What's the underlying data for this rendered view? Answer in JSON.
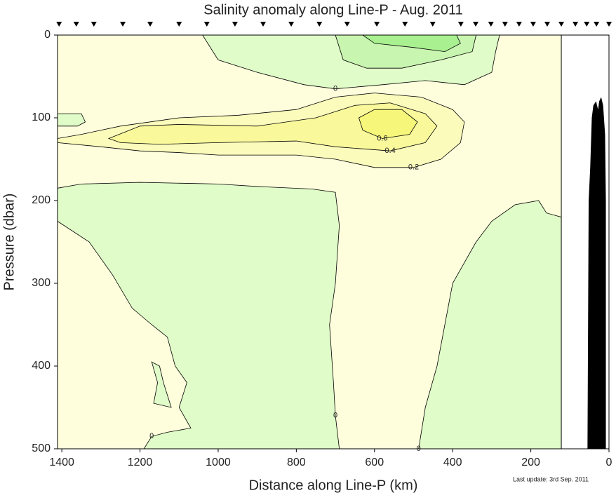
{
  "chart_data": {
    "type": "contour",
    "title": "Salinity anomaly along Line-P - Aug. 2011",
    "xlabel": "Distance along Line-P (km)",
    "ylabel": "Pressure (dbar)",
    "note": "Last update: 3rd Sep. 2011",
    "xlim": [
      1411,
      0
    ],
    "ylim": [
      500,
      0
    ],
    "xticks": [
      1400,
      1200,
      1000,
      800,
      600,
      400,
      200,
      0
    ],
    "yticks": [
      0,
      100,
      200,
      300,
      400,
      500
    ],
    "background": "#fefedc",
    "data_edge": 122,
    "stations": [
      1407,
      1363,
      1318,
      1244,
      1174,
      1100,
      1029,
      957,
      885,
      813,
      741,
      670,
      594,
      522,
      451,
      379,
      341,
      302,
      266,
      230,
      194,
      158,
      122,
      86,
      57,
      32,
      0
    ],
    "contours": [
      {
        "level": 0,
        "color": "#e0fcc8",
        "x": [
          1411,
          1350,
          1200,
          1000,
          900,
          760,
          700,
          690,
          700,
          715,
          705,
          700,
          690,
          1190,
          1411
        ],
        "y": [
          185,
          180,
          178,
          180,
          183,
          186,
          190,
          230,
          300,
          350,
          420,
          460,
          500,
          500,
          500
        ]
      },
      {
        "level": 0,
        "color": "#fefedc",
        "x": [
          1411,
          1330,
          1270,
          1220,
          1170,
          1130,
          1110,
          1080,
          1100,
          1070,
          1130,
          1170,
          1190,
          1411
        ],
        "y": [
          225,
          250,
          290,
          330,
          350,
          365,
          400,
          420,
          450,
          475,
          480,
          485,
          500,
          500
        ]
      },
      {
        "color": "#e0fcc8",
        "x": [
          1170,
          1150,
          1140,
          1120,
          1165,
          1155
        ],
        "y": [
          395,
          400,
          420,
          450,
          445,
          420
        ]
      },
      {
        "level": 0,
        "color": "#e0fcc8",
        "x": [
          487,
          470,
          440,
          420,
          400,
          340,
          300,
          240,
          180,
          160,
          122,
          122
        ],
        "y": [
          500,
          450,
          400,
          350,
          300,
          250,
          225,
          205,
          200,
          215,
          220,
          500
        ]
      },
      {
        "level": 0,
        "color": "#e0fcc8",
        "x": [
          1040,
          1000,
          900,
          780,
          700,
          580,
          470,
          370,
          300,
          290,
          280
        ],
        "y": [
          0,
          30,
          45,
          60,
          65,
          60,
          55,
          60,
          45,
          20,
          0
        ]
      },
      {
        "color": "#c8f5b0",
        "x": [
          700,
          680,
          620,
          530,
          430,
          350,
          340
        ],
        "y": [
          0,
          30,
          40,
          40,
          30,
          20,
          0
        ]
      },
      {
        "color": "#a8f090",
        "x": [
          630,
          600,
          500,
          420,
          380,
          390
        ],
        "y": [
          0,
          10,
          15,
          20,
          10,
          0
        ]
      },
      {
        "color": "#e0fcc8",
        "x": [
          1411,
          1350,
          1340,
          1360,
          1411
        ],
        "y": [
          95,
          95,
          105,
          110,
          110
        ]
      },
      {
        "level": 0.2,
        "color": "#fbfbbc",
        "x": [
          1411,
          1350,
          1250,
          1100,
          950,
          800,
          700,
          600,
          480,
          400,
          370,
          380,
          430,
          500,
          600,
          700,
          800,
          900,
          1000,
          1100,
          1200,
          1300,
          1411
        ],
        "y": [
          125,
          120,
          110,
          100,
          97,
          90,
          75,
          70,
          75,
          90,
          105,
          130,
          150,
          160,
          160,
          150,
          145,
          145,
          145,
          142,
          140,
          135,
          130
        ]
      },
      {
        "level": 0.4,
        "color": "#f9f99c",
        "x": [
          1280,
          1200,
          1100,
          900,
          750,
          650,
          560,
          470,
          440,
          470,
          560,
          700,
          800,
          1000,
          1150,
          1250
        ],
        "y": [
          125,
          110,
          108,
          110,
          100,
          85,
          82,
          95,
          110,
          130,
          140,
          135,
          128,
          130,
          132,
          130
        ]
      },
      {
        "level": 0.6,
        "color": "#f6f67a",
        "x": [
          640,
          600,
          530,
          490,
          510,
          580,
          630
        ],
        "y": [
          100,
          90,
          90,
          105,
          120,
          125,
          115
        ]
      }
    ],
    "bathymetry": {
      "color": "#000000",
      "x": [
        55,
        52,
        48,
        44,
        40,
        33,
        28,
        25,
        20,
        15,
        10,
        8,
        8
      ],
      "y": [
        500,
        200,
        160,
        100,
        85,
        80,
        90,
        80,
        75,
        85,
        120,
        200,
        500
      ]
    }
  }
}
